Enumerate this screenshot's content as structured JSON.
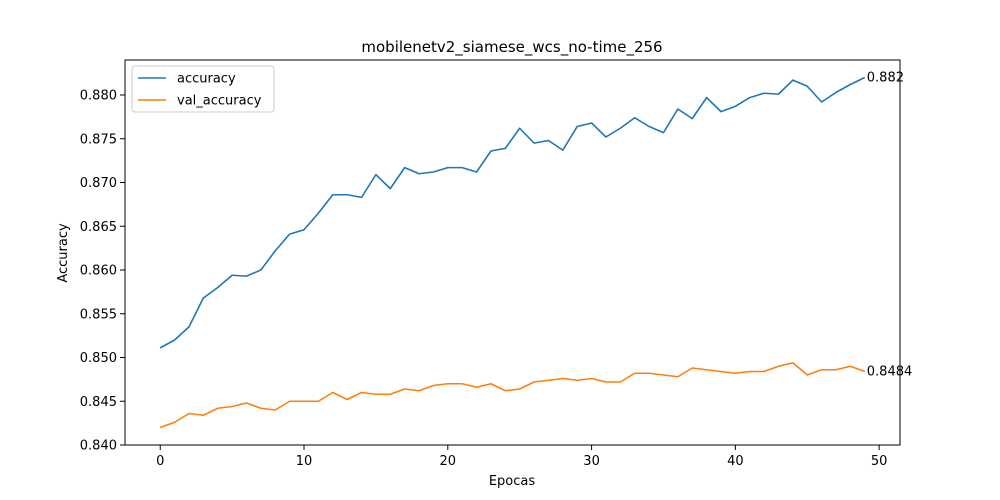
{
  "chart_data": {
    "type": "line",
    "title": "mobilenetv2_siamese_wcs_no-time_256",
    "xlabel": "Epocas",
    "ylabel": "Accuracy",
    "xlim": [
      -2.45,
      51.45
    ],
    "ylim": [
      0.84,
      0.884
    ],
    "xticks": [
      0,
      10,
      20,
      30,
      40,
      50
    ],
    "xtick_labels": [
      "0",
      "10",
      "20",
      "30",
      "40",
      "50"
    ],
    "yticks": [
      0.84,
      0.845,
      0.85,
      0.855,
      0.86,
      0.865,
      0.87,
      0.875,
      0.88
    ],
    "ytick_labels": [
      "0.840",
      "0.845",
      "0.850",
      "0.855",
      "0.860",
      "0.865",
      "0.870",
      "0.875",
      "0.880"
    ],
    "grid": false,
    "legend_position": "top-left",
    "x": [
      0,
      1,
      2,
      3,
      4,
      5,
      6,
      7,
      8,
      9,
      10,
      11,
      12,
      13,
      14,
      15,
      16,
      17,
      18,
      19,
      20,
      21,
      22,
      23,
      24,
      25,
      26,
      27,
      28,
      29,
      30,
      31,
      32,
      33,
      34,
      35,
      36,
      37,
      38,
      39,
      40,
      41,
      42,
      43,
      44,
      45,
      46,
      47,
      48,
      49
    ],
    "series": [
      {
        "name": "accuracy",
        "color": "#1f77b4",
        "end_label": "0.882",
        "values": [
          0.8511,
          0.852,
          0.8535,
          0.8568,
          0.858,
          0.8594,
          0.8593,
          0.86,
          0.8622,
          0.8641,
          0.8646,
          0.8665,
          0.8686,
          0.8686,
          0.8683,
          0.8709,
          0.8693,
          0.8717,
          0.871,
          0.8712,
          0.8717,
          0.8717,
          0.8712,
          0.8736,
          0.8739,
          0.8762,
          0.8745,
          0.8748,
          0.8737,
          0.8764,
          0.8768,
          0.8752,
          0.8762,
          0.8774,
          0.8764,
          0.8757,
          0.8784,
          0.8773,
          0.8797,
          0.8781,
          0.8787,
          0.8797,
          0.8802,
          0.8801,
          0.8817,
          0.881,
          0.8792,
          0.8803,
          0.8812,
          0.882
        ]
      },
      {
        "name": "val_accuracy",
        "color": "#ff7f0e",
        "end_label": "0.8484",
        "values": [
          0.842,
          0.8426,
          0.8436,
          0.8434,
          0.8442,
          0.8444,
          0.8448,
          0.8442,
          0.844,
          0.845,
          0.845,
          0.845,
          0.846,
          0.8452,
          0.846,
          0.8458,
          0.8458,
          0.8464,
          0.8462,
          0.8468,
          0.847,
          0.847,
          0.8466,
          0.847,
          0.8462,
          0.8464,
          0.8472,
          0.8474,
          0.8476,
          0.8474,
          0.8476,
          0.8472,
          0.8472,
          0.8482,
          0.8482,
          0.848,
          0.8478,
          0.8488,
          0.8486,
          0.8484,
          0.8482,
          0.8484,
          0.8484,
          0.849,
          0.8494,
          0.848,
          0.8486,
          0.8486,
          0.849,
          0.8484
        ]
      }
    ]
  }
}
